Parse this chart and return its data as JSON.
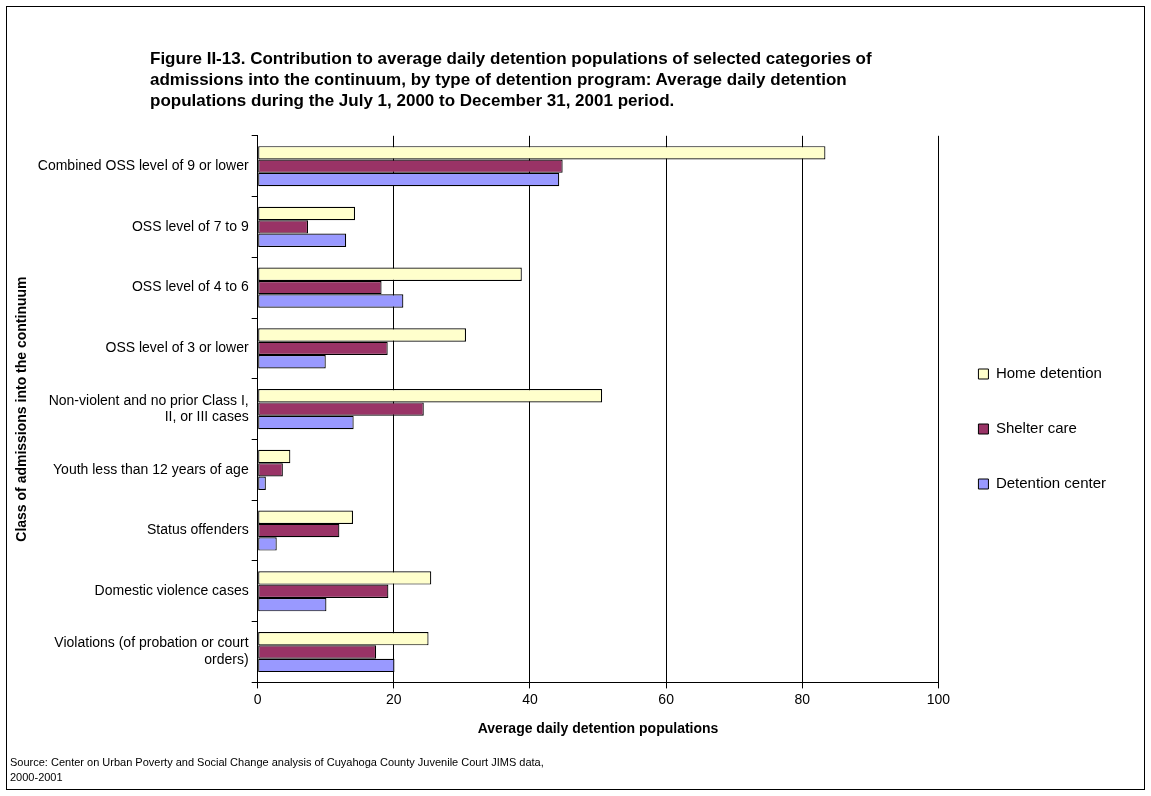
{
  "chart_data": {
    "type": "bar",
    "orientation": "horizontal",
    "title": "Figure II-13.  Contribution to average daily detention populations of selected categories of admissions into the continuum, by type of detention program: Average daily detention populations during the July 1, 2000 to December 31, 2001 period.",
    "xlabel": "Average daily detention populations",
    "ylabel": "Class of admissions into the continuum",
    "categories": [
      "Combined OSS level of 9 or lower",
      "OSS level of 7 to 9",
      "OSS level of 4 to 6",
      "OSS level of 3 or lower",
      "Non-violent and no prior Class I, II, or III cases",
      "Youth less than 12 years of age",
      "Status offenders",
      "Domestic violence cases",
      "Violations (of probation or court orders)"
    ],
    "series": [
      {
        "name": "Home detention",
        "color": "#ffffcc",
        "values": [
          83.4,
          14.3,
          38.8,
          30.6,
          50.6,
          4.8,
          14.0,
          25.5,
          25.1
        ]
      },
      {
        "name": "Shelter care",
        "color": "#993366",
        "values": [
          44.8,
          7.4,
          18.2,
          19.1,
          24.4,
          3.7,
          12.0,
          19.2,
          17.4
        ]
      },
      {
        "name": "Detention center",
        "color": "#9999ff",
        "values": [
          44.3,
          13.0,
          21.4,
          10.0,
          14.1,
          1.2,
          2.8,
          10.1,
          20.1
        ]
      }
    ],
    "xlim": [
      0,
      100
    ],
    "xticks": [
      0,
      20,
      40,
      60,
      80,
      100
    ],
    "grid": "x",
    "legend": "right",
    "annotations": [
      "Source: Center on Urban Poverty and Social Change analysis of Cuyahoga County Juvenile Court JIMS data, 2000-2001"
    ]
  }
}
